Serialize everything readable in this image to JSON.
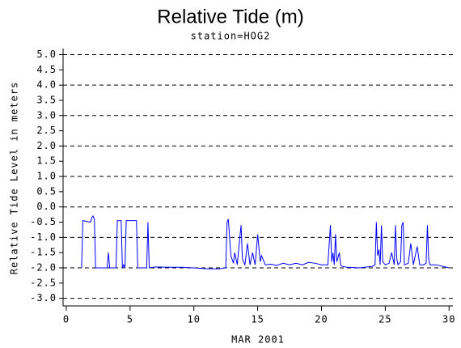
{
  "chart_data": {
    "type": "line",
    "title": "Relative Tide (m)",
    "subtitle": "station=HOG2",
    "x_label": "MAR 2001",
    "y_label": "Relative Tide Level in meters",
    "xlim": [
      -0.25,
      30.3
    ],
    "xticks": [
      0,
      5,
      10,
      15,
      20,
      25,
      30
    ],
    "ylim": [
      -3.25,
      5.2
    ],
    "yticks": [
      {
        "value": -3,
        "label": "-3.0"
      },
      {
        "value": -2.5,
        "label": "-2.5"
      },
      {
        "value": -2,
        "label": "-2.0"
      },
      {
        "value": -1.5,
        "label": "-1.5"
      },
      {
        "value": -1,
        "label": "-1.0"
      },
      {
        "value": -0.5,
        "label": "-0.5"
      },
      {
        "value": 0,
        "label": "0.0"
      },
      {
        "value": 0.5,
        "label": "0.5"
      },
      {
        "value": 1,
        "label": "1.0"
      },
      {
        "value": 1.5,
        "label": "1.5"
      },
      {
        "value": 2,
        "label": "2.0"
      },
      {
        "value": 2.5,
        "label": "2.5"
      },
      {
        "value": 3,
        "label": "3.0"
      },
      {
        "value": 3.5,
        "label": "3.5"
      },
      {
        "value": 4,
        "label": "4.0"
      },
      {
        "value": 4.5,
        "label": "4.5"
      },
      {
        "value": 5,
        "label": "5.0"
      }
    ],
    "grid": true,
    "grid_style": "dashed",
    "color": "#0000ff",
    "x": [
      1.2,
      1.3,
      1.9,
      2.0,
      2.1,
      2.2,
      2.3,
      3.2,
      3.3,
      3.4,
      3.9,
      4.0,
      4.3,
      4.4,
      4.5,
      4.6,
      4.7,
      5.5,
      5.6,
      6.3,
      6.4,
      6.5,
      7.0,
      8.0,
      9.0,
      10.0,
      11.0,
      12.0,
      12.5,
      12.6,
      12.7,
      12.9,
      13.1,
      13.2,
      13.4,
      13.6,
      13.7,
      13.8,
      14.0,
      14.2,
      14.4,
      14.6,
      14.8,
      15.0,
      15.2,
      15.3,
      15.6,
      16.0,
      16.5,
      17.0,
      17.5,
      18.0,
      18.5,
      19.0,
      19.5,
      20.0,
      20.5,
      20.7,
      20.8,
      20.9,
      21.0,
      21.1,
      21.2,
      21.4,
      21.5,
      21.6,
      22.0,
      23.0,
      24.0,
      24.2,
      24.3,
      24.4,
      24.5,
      24.6,
      24.7,
      24.8,
      25.0,
      25.3,
      25.5,
      25.7,
      25.8,
      25.9,
      26.0,
      26.2,
      26.3,
      26.4,
      26.5,
      26.8,
      27.0,
      27.2,
      27.5,
      27.7,
      28.0,
      28.2,
      28.3,
      28.4,
      28.5,
      29.0,
      29.5,
      30.0
    ],
    "values": [
      -2.0,
      -0.45,
      -0.5,
      -0.35,
      -0.3,
      -0.4,
      -2.0,
      -2.0,
      -1.5,
      -2.0,
      -2.0,
      -0.45,
      -0.45,
      -2.0,
      -1.9,
      -2.0,
      -0.45,
      -0.45,
      -2.0,
      -2.0,
      -0.5,
      -2.0,
      -1.97,
      -1.98,
      -1.98,
      -2.0,
      -2.03,
      -2.03,
      -2.0,
      -0.5,
      -0.4,
      -1.6,
      -1.85,
      -1.5,
      -1.9,
      -1.0,
      -0.6,
      -1.7,
      -1.9,
      -1.2,
      -1.9,
      -1.5,
      -1.9,
      -0.9,
      -1.8,
      -1.6,
      -1.9,
      -1.88,
      -1.92,
      -1.85,
      -1.9,
      -1.85,
      -1.9,
      -1.82,
      -1.85,
      -1.9,
      -1.9,
      -0.6,
      -1.8,
      -1.5,
      -1.9,
      -0.9,
      -1.8,
      -1.5,
      -1.9,
      -1.95,
      -1.98,
      -2.0,
      -1.95,
      -1.9,
      -0.5,
      -1.6,
      -1.4,
      -1.9,
      -0.6,
      -1.8,
      -1.9,
      -1.85,
      -1.5,
      -1.9,
      -0.6,
      -1.7,
      -1.9,
      -1.8,
      -0.6,
      -0.5,
      -1.9,
      -1.85,
      -1.2,
      -1.9,
      -1.3,
      -1.9,
      -1.9,
      -1.85,
      -0.6,
      -1.7,
      -1.9,
      -1.9,
      -1.95,
      -2.0
    ]
  }
}
